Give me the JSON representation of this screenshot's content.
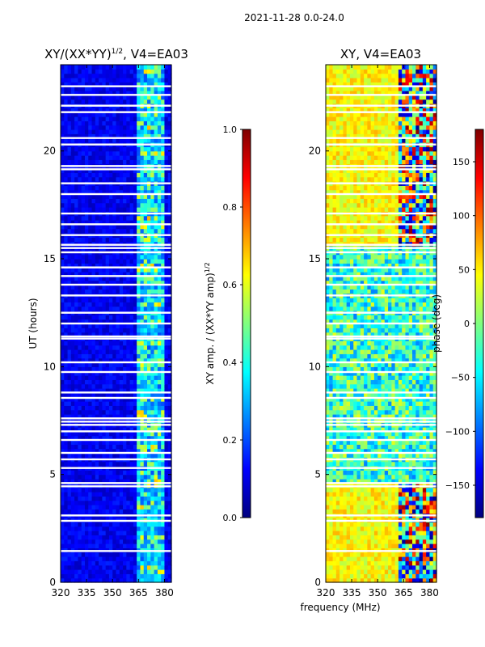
{
  "suptitle": "2021-11-28 0.0-24.0",
  "chart_data": [
    {
      "type": "heatmap",
      "title": "XY/(XX*YY)",
      "title_exp": "1/2",
      "title_suffix": ", V4=EA03",
      "xlabel": "",
      "ylabel": "UT (hours)",
      "xlim": [
        320,
        384
      ],
      "ylim": [
        0,
        24
      ],
      "xticks": [
        320,
        335,
        350,
        365,
        380
      ],
      "yticks": [
        0,
        5,
        10,
        15,
        20
      ],
      "colorscale": "jet",
      "colorbar": {
        "label": "XY amp. / (XX*YY amp)",
        "label_exp": "1/2",
        "range": [
          0.0,
          1.0
        ],
        "ticks": [
          "0.0",
          "0.2",
          "0.4",
          "0.6",
          "0.8",
          "1.0"
        ]
      },
      "flagged_gaps_hours": [
        1.45,
        2.85,
        3.1,
        4.45,
        4.6,
        5.3,
        5.7,
        6.0,
        6.6,
        7.0,
        7.3,
        7.45,
        7.6,
        8.55,
        8.8,
        9.75,
        10.2,
        11.3,
        11.4,
        12.0,
        12.5,
        13.3,
        13.8,
        14.2,
        14.6,
        15.3,
        15.5,
        15.65,
        16.1,
        16.6,
        17.1,
        18.0,
        18.5,
        19.15,
        19.3,
        20.3,
        20.6,
        21.8,
        22.1,
        22.6,
        23.0
      ]
    },
    {
      "type": "heatmap",
      "title": "XY, V4=EA03",
      "xlabel": "frequency (MHz)",
      "ylabel": "",
      "xlim": [
        320,
        384
      ],
      "ylim": [
        0,
        24
      ],
      "xticks": [
        320,
        335,
        350,
        365,
        380
      ],
      "yticks": [
        0,
        5,
        10,
        15,
        20
      ],
      "colorscale": "jet",
      "colorbar": {
        "label": "phase (deg)",
        "range": [
          -180,
          180
        ],
        "ticks": [
          "150",
          "100",
          "50",
          "0",
          "−50",
          "−100",
          "−150"
        ]
      },
      "flagged_gaps_hours": [
        1.45,
        2.85,
        3.1,
        4.45,
        4.6,
        5.3,
        5.7,
        6.0,
        6.6,
        7.0,
        7.3,
        7.45,
        7.6,
        8.55,
        8.8,
        9.75,
        10.2,
        11.3,
        11.4,
        12.0,
        12.5,
        13.3,
        13.8,
        14.2,
        14.6,
        15.3,
        15.5,
        15.65,
        16.1,
        16.6,
        17.1,
        18.0,
        18.5,
        19.15,
        19.3,
        20.3,
        20.6,
        21.8,
        22.1,
        22.6,
        23.0
      ]
    }
  ]
}
